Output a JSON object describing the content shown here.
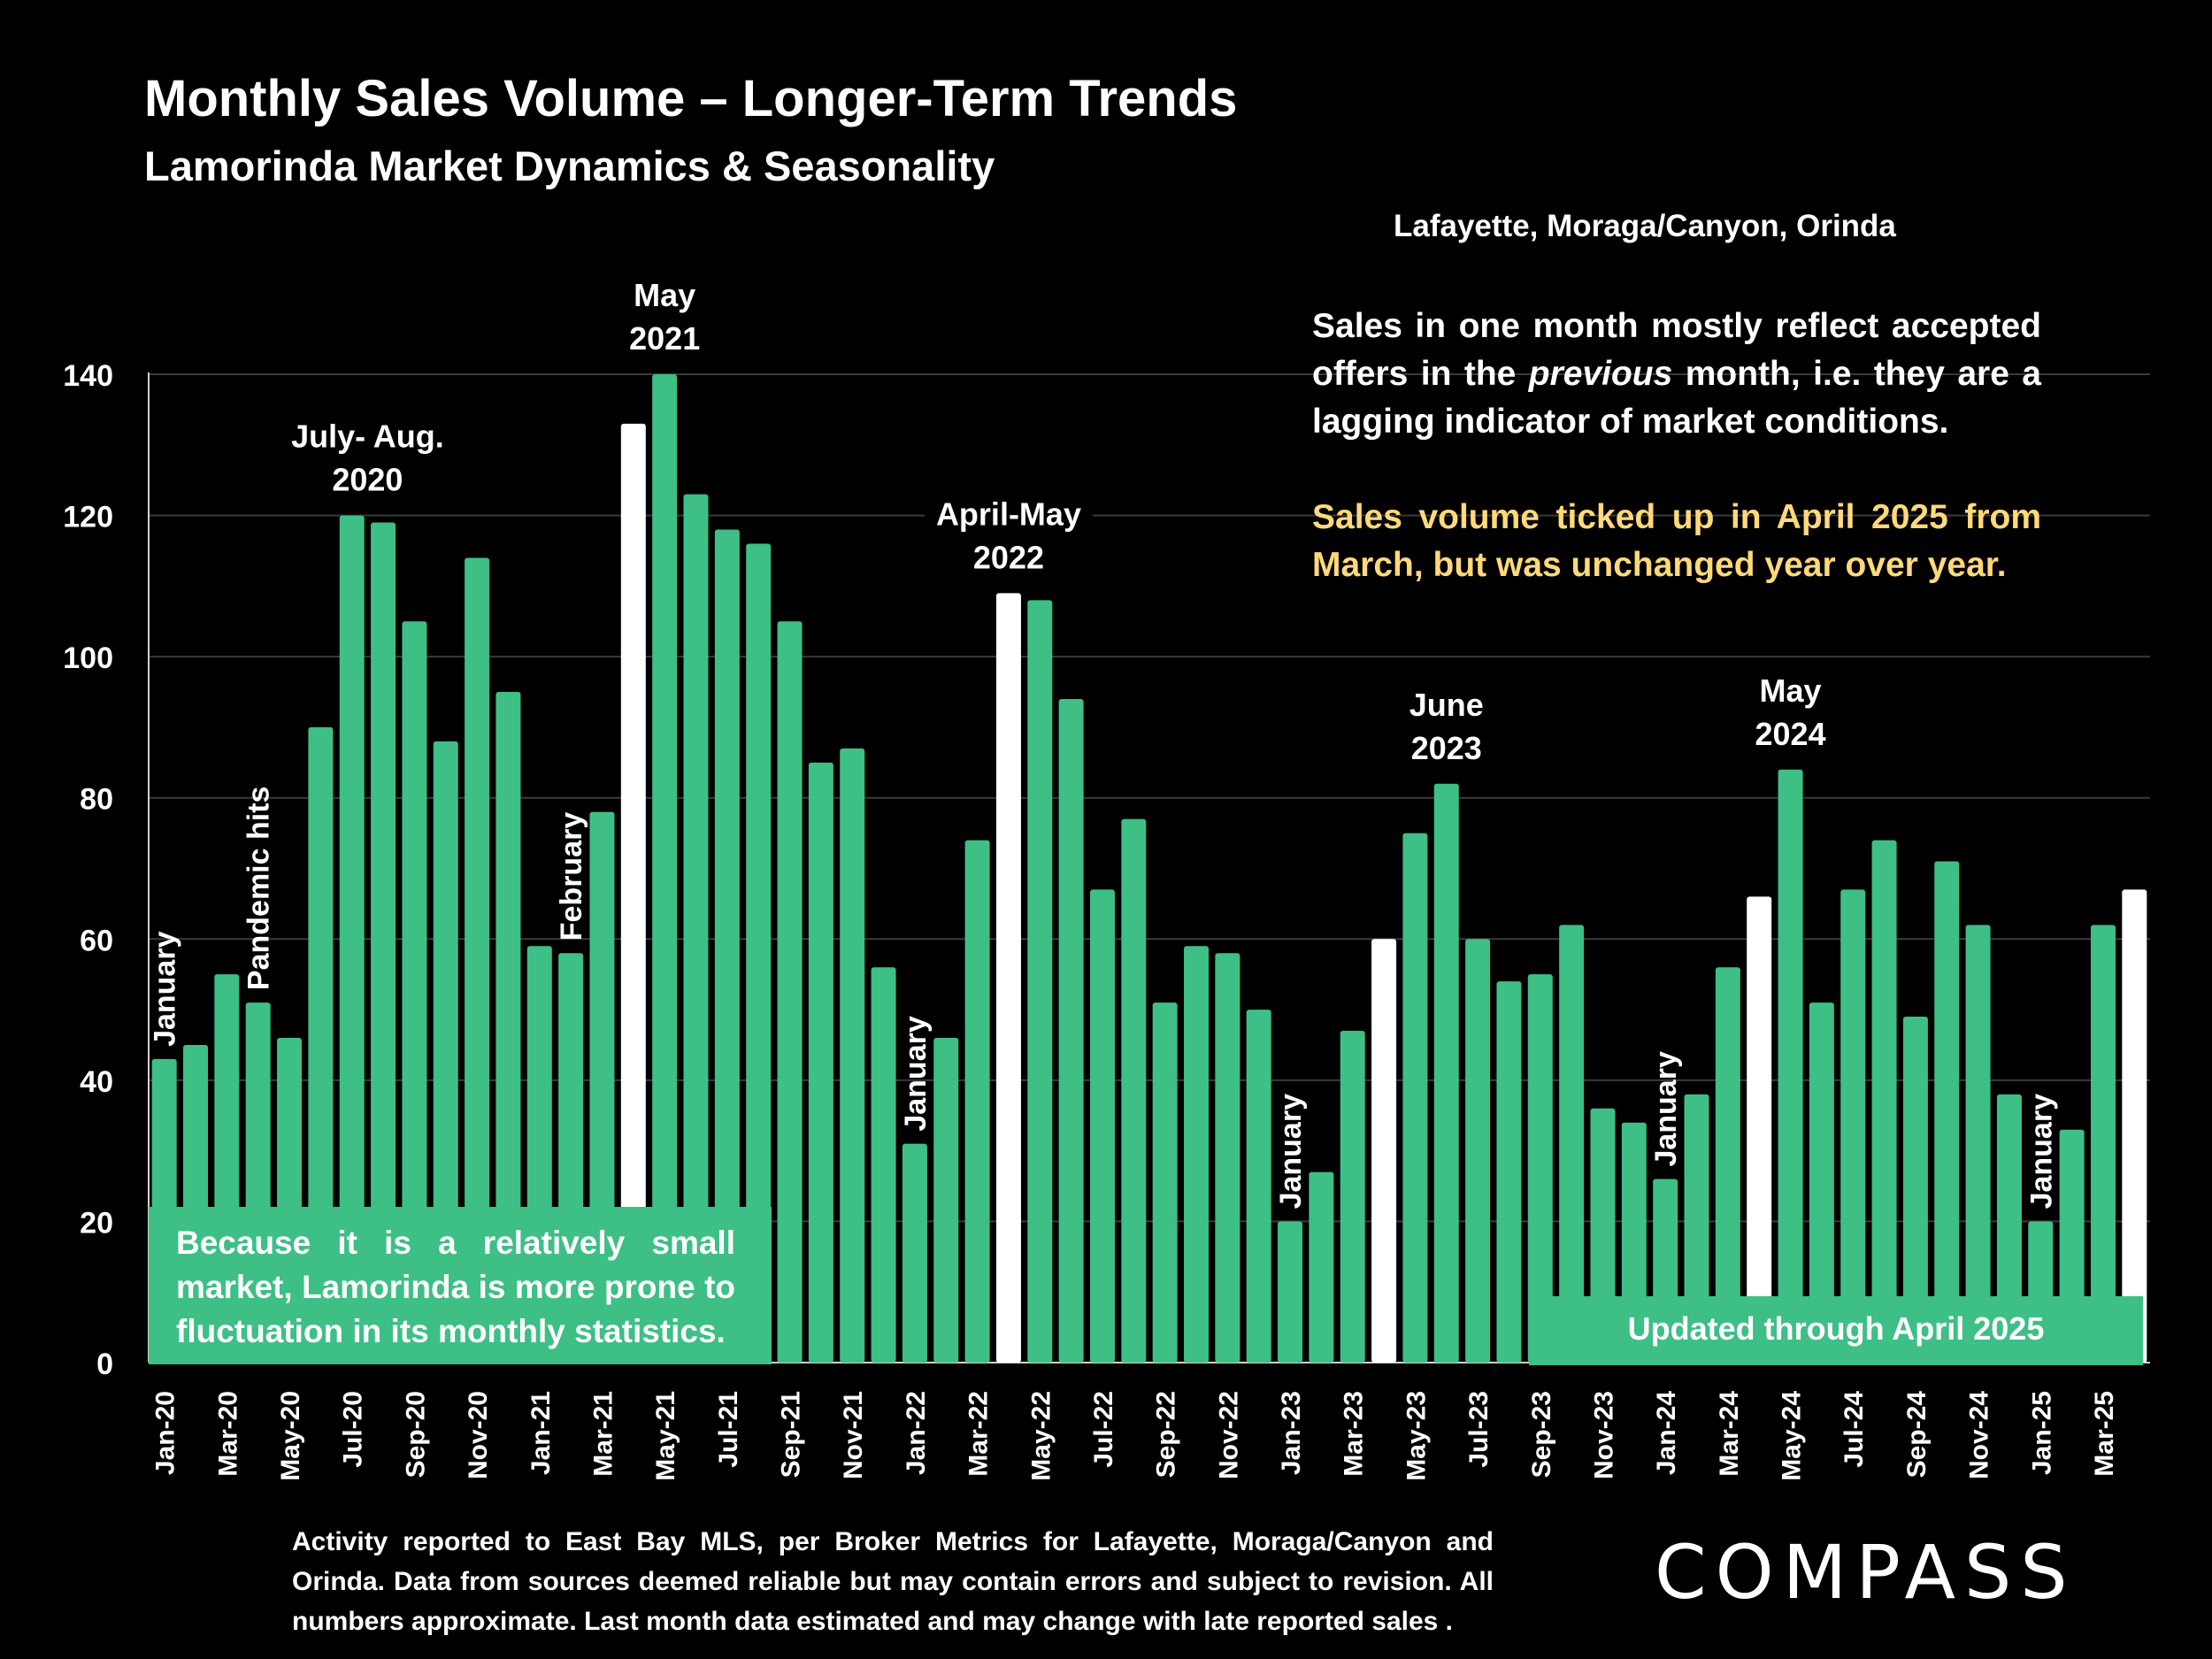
{
  "header": {
    "title": "Monthly Sales Volume – Longer-Term Trends",
    "subtitle": "Lamorinda Market Dynamics & Seasonality",
    "region": "Lafayette, Moraga/Canyon, Orinda"
  },
  "notes": {
    "primary_before": "Sales in one month mostly reflect accepted offers in the ",
    "primary_italic": "previous",
    "primary_after": " month, i.e. they are a lagging indicator of market conditions.",
    "highlight": "Sales volume ticked up in April 2025 from March, but was unchanged year over year."
  },
  "boxes": {
    "left": "Because it is a relatively small market, Lamorinda is more prone to fluctuation in its monthly statistics.",
    "right": "Updated through April 2025"
  },
  "footnote": "Activity reported to East Bay MLS, per Broker Metrics for Lafayette, Moraga/Canyon and Orinda. Data from sources deemed reliable but may contain errors and subject to revision. All numbers approximate. Last month data estimated and may change with late reported sales .",
  "logo": "COMPASS",
  "colors": {
    "background": "#000000",
    "bar": "#3dbf85",
    "bar_highlight": "#ffffff",
    "gridline": "#3a3a3a",
    "highlight_text": "#ffd97a"
  },
  "chart_data": {
    "type": "bar",
    "ylim": [
      0,
      140
    ],
    "y_ticks": [
      0,
      20,
      40,
      60,
      80,
      100,
      120,
      140
    ],
    "grid": true,
    "categories": [
      "Jan-20",
      "Feb-20",
      "Mar-20",
      "Apr-20",
      "May-20",
      "Jun-20",
      "Jul-20",
      "Aug-20",
      "Sep-20",
      "Oct-20",
      "Nov-20",
      "Dec-20",
      "Jan-21",
      "Feb-21",
      "Mar-21",
      "Apr-21",
      "May-21",
      "Jun-21",
      "Jul-21",
      "Aug-21",
      "Sep-21",
      "Oct-21",
      "Nov-21",
      "Dec-21",
      "Jan-22",
      "Feb-22",
      "Mar-22",
      "Apr-22",
      "May-22",
      "Jun-22",
      "Jul-22",
      "Aug-22",
      "Sep-22",
      "Oct-22",
      "Nov-22",
      "Dec-22",
      "Jan-23",
      "Feb-23",
      "Mar-23",
      "Apr-23",
      "May-23",
      "Jun-23",
      "Jul-23",
      "Aug-23",
      "Sep-23",
      "Oct-23",
      "Nov-23",
      "Dec-23",
      "Jan-24",
      "Feb-24",
      "Mar-24",
      "Apr-24",
      "May-24",
      "Jun-24",
      "Jul-24",
      "Aug-24",
      "Sep-24",
      "Oct-24",
      "Nov-24",
      "Dec-24",
      "Jan-25",
      "Feb-25",
      "Mar-25",
      "Apr-25"
    ],
    "visible_x_labels": [
      "Jan-20",
      "Mar-20",
      "May-20",
      "Jul-20",
      "Sep-20",
      "Nov-20",
      "Jan-21",
      "Mar-21",
      "May-21",
      "Jul-21",
      "Sep-21",
      "Nov-21",
      "Jan-22",
      "Mar-22",
      "May-22",
      "Jul-22",
      "Sep-22",
      "Nov-22",
      "Jan-23",
      "Mar-23",
      "May-23",
      "Jul-23",
      "Sep-23",
      "Nov-23",
      "Jan-24",
      "Mar-24",
      "May-24",
      "Jul-24",
      "Sep-24",
      "Nov-24",
      "Jan-25",
      "Mar-25"
    ],
    "values": [
      43,
      45,
      55,
      51,
      46,
      90,
      120,
      119,
      105,
      88,
      114,
      95,
      59,
      58,
      78,
      133,
      140,
      123,
      118,
      116,
      105,
      85,
      87,
      56,
      31,
      46,
      74,
      109,
      108,
      94,
      67,
      77,
      51,
      59,
      58,
      50,
      20,
      27,
      47,
      60,
      75,
      82,
      60,
      54,
      55,
      62,
      36,
      34,
      26,
      38,
      56,
      66,
      84,
      51,
      67,
      74,
      49,
      71,
      62,
      38,
      20,
      33,
      62,
      67
    ],
    "highlighted": [
      "Apr-21",
      "Apr-22",
      "Apr-23",
      "Apr-24",
      "Apr-25"
    ],
    "annotations": [
      {
        "text": "January",
        "at": "Jan-20",
        "rotated": true
      },
      {
        "text": "Pandemic hits",
        "at": "Apr-20",
        "rotated": true
      },
      {
        "text": "July- Aug.",
        "text2": "2020",
        "at": "Jul-20",
        "rotated": false
      },
      {
        "text": "February",
        "at": "Feb-21",
        "rotated": true
      },
      {
        "text": "May",
        "text2": "2021",
        "at": "May-21",
        "rotated": false
      },
      {
        "text": "January",
        "at": "Jan-22",
        "rotated": true
      },
      {
        "text": "April-May",
        "text2": "2022",
        "at": "Apr-22",
        "rotated": false
      },
      {
        "text": "January",
        "at": "Jan-23",
        "rotated": true
      },
      {
        "text": "June",
        "text2": "2023",
        "at": "Jun-23",
        "rotated": false
      },
      {
        "text": "January",
        "at": "Jan-24",
        "rotated": true
      },
      {
        "text": "May",
        "text2": "2024",
        "at": "May-24",
        "rotated": false
      },
      {
        "text": "January",
        "at": "Jan-25",
        "rotated": true
      }
    ]
  }
}
